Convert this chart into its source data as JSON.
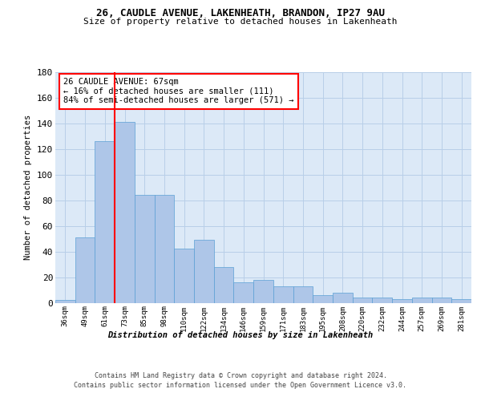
{
  "title1": "26, CAUDLE AVENUE, LAKENHEATH, BRANDON, IP27 9AU",
  "title2": "Size of property relative to detached houses in Lakenheath",
  "xlabel": "Distribution of detached houses by size in Lakenheath",
  "ylabel": "Number of detached properties",
  "categories": [
    "36sqm",
    "49sqm",
    "61sqm",
    "73sqm",
    "85sqm",
    "98sqm",
    "110sqm",
    "122sqm",
    "134sqm",
    "146sqm",
    "159sqm",
    "171sqm",
    "183sqm",
    "195sqm",
    "208sqm",
    "220sqm",
    "232sqm",
    "244sqm",
    "257sqm",
    "269sqm",
    "281sqm"
  ],
  "values": [
    2,
    51,
    126,
    141,
    84,
    84,
    42,
    49,
    28,
    16,
    18,
    13,
    13,
    6,
    8,
    4,
    4,
    3,
    4,
    4,
    3
  ],
  "bar_color": "#aec6e8",
  "bar_edge_color": "#5a9fd4",
  "bg_color": "#dce9f7",
  "grid_color": "#b8cfe8",
  "vline_color": "red",
  "vline_x_index": 2,
  "annotation_text": "26 CAUDLE AVENUE: 67sqm\n← 16% of detached houses are smaller (111)\n84% of semi-detached houses are larger (571) →",
  "annotation_box_color": "white",
  "annotation_box_edge": "red",
  "footer1": "Contains HM Land Registry data © Crown copyright and database right 2024.",
  "footer2": "Contains public sector information licensed under the Open Government Licence v3.0.",
  "ylim": [
    0,
    180
  ],
  "yticks": [
    0,
    20,
    40,
    60,
    80,
    100,
    120,
    140,
    160,
    180
  ]
}
